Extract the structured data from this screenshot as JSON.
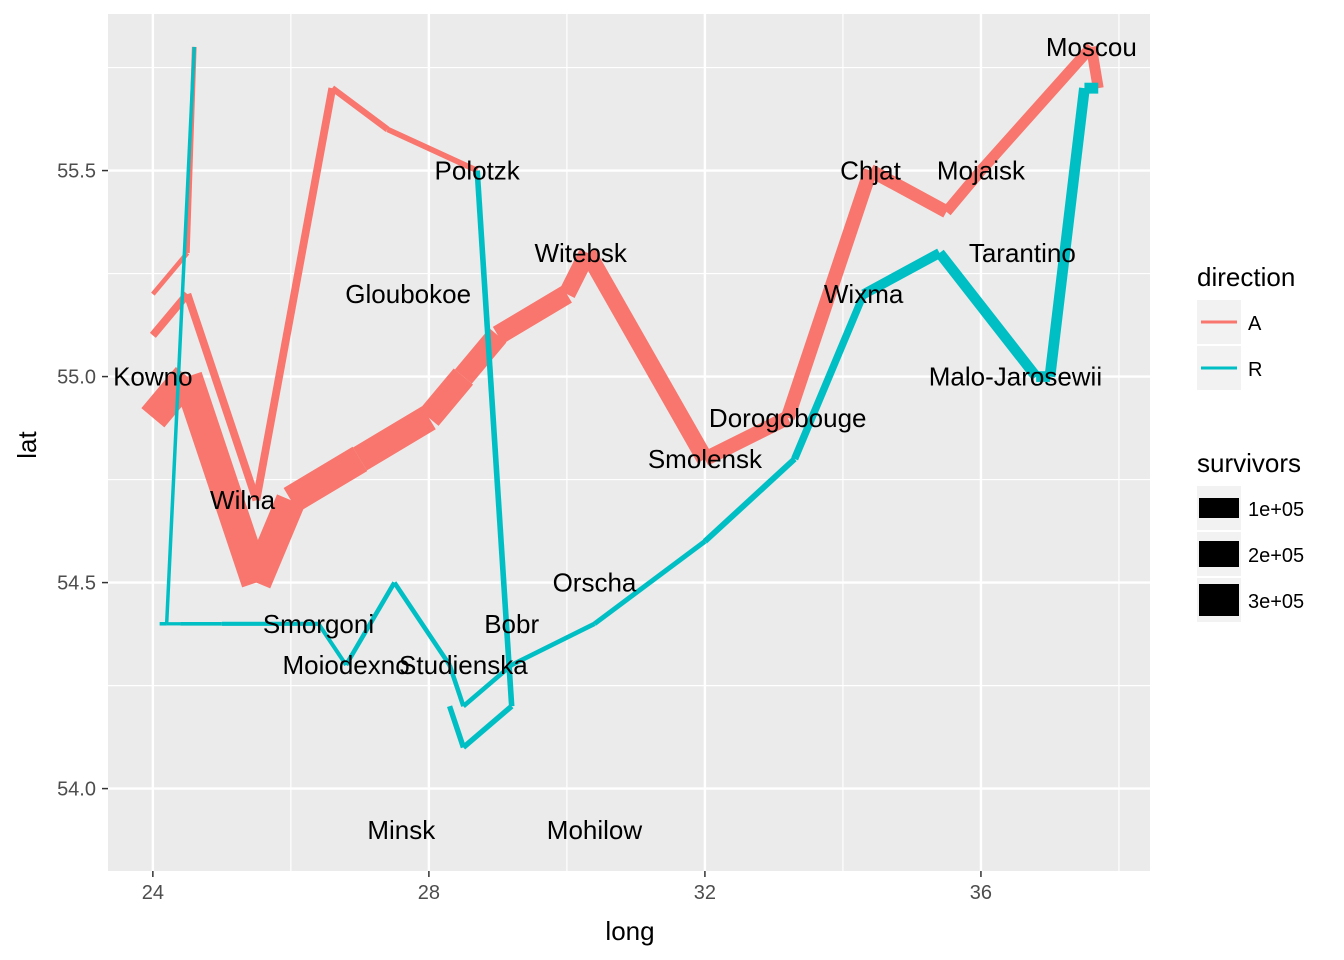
{
  "chart_data": {
    "type": "line",
    "title": "",
    "xlabel": "long",
    "ylabel": "lat",
    "xlim": [
      23.35,
      38.45
    ],
    "ylim": [
      53.8,
      55.88
    ],
    "x_ticks": [
      24,
      28,
      32,
      36
    ],
    "y_ticks": [
      54.0,
      54.5,
      55.0,
      55.5
    ],
    "grid": true,
    "colors": {
      "A": "#F8766D",
      "R": "#00BFC4",
      "panel": "#EBEBEB",
      "grid": "#FFFFFF"
    },
    "series": [
      {
        "name": "A",
        "group": 1,
        "points": [
          {
            "long": 24.0,
            "lat": 54.9,
            "survivors": 340000
          },
          {
            "long": 24.5,
            "lat": 55.0,
            "survivors": 340000
          },
          {
            "long": 25.5,
            "lat": 54.5,
            "survivors": 340000
          },
          {
            "long": 26.0,
            "lat": 54.7,
            "survivors": 320000
          },
          {
            "long": 27.0,
            "lat": 54.8,
            "survivors": 300000
          },
          {
            "long": 28.0,
            "lat": 54.9,
            "survivors": 280000
          },
          {
            "long": 28.5,
            "lat": 55.0,
            "survivors": 240000
          },
          {
            "long": 29.0,
            "lat": 55.1,
            "survivors": 210000
          },
          {
            "long": 30.0,
            "lat": 55.2,
            "survivors": 180000
          },
          {
            "long": 30.3,
            "lat": 55.3,
            "survivors": 175000
          },
          {
            "long": 32.0,
            "lat": 54.8,
            "survivors": 145000
          },
          {
            "long": 33.2,
            "lat": 54.9,
            "survivors": 140000
          },
          {
            "long": 34.4,
            "lat": 55.5,
            "survivors": 127100
          },
          {
            "long": 35.5,
            "lat": 55.4,
            "survivors": 100000
          },
          {
            "long": 36.0,
            "lat": 55.5,
            "survivors": 100000
          },
          {
            "long": 37.6,
            "lat": 55.8,
            "survivors": 100000
          },
          {
            "long": 37.7,
            "lat": 55.7,
            "survivors": 100000
          }
        ]
      },
      {
        "name": "R",
        "group": 1,
        "points": [
          {
            "long": 37.7,
            "lat": 55.7,
            "survivors": 100000
          },
          {
            "long": 37.5,
            "lat": 55.7,
            "survivors": 98000
          },
          {
            "long": 37.0,
            "lat": 55.0,
            "survivors": 97000
          },
          {
            "long": 36.8,
            "lat": 55.0,
            "survivors": 96000
          },
          {
            "long": 35.4,
            "lat": 55.3,
            "survivors": 87000
          },
          {
            "long": 34.3,
            "lat": 55.2,
            "survivors": 55000
          },
          {
            "long": 33.3,
            "lat": 54.8,
            "survivors": 37000
          },
          {
            "long": 32.0,
            "lat": 54.6,
            "survivors": 24000
          },
          {
            "long": 30.4,
            "lat": 54.4,
            "survivors": 20000
          },
          {
            "long": 29.2,
            "lat": 54.3,
            "survivors": 20000
          },
          {
            "long": 28.5,
            "lat": 54.2,
            "survivors": 20000
          },
          {
            "long": 28.3,
            "lat": 54.3,
            "survivors": 20000
          },
          {
            "long": 27.5,
            "lat": 54.5,
            "survivors": 20000
          },
          {
            "long": 26.8,
            "lat": 54.3,
            "survivors": 12000
          },
          {
            "long": 26.4,
            "lat": 54.4,
            "survivors": 14000
          },
          {
            "long": 25.0,
            "lat": 54.4,
            "survivors": 8000
          },
          {
            "long": 24.4,
            "lat": 54.4,
            "survivors": 4000
          },
          {
            "long": 24.2,
            "lat": 54.4,
            "survivors": 4000
          },
          {
            "long": 24.1,
            "lat": 54.4,
            "survivors": 4000
          }
        ]
      },
      {
        "name": "A",
        "group": 2,
        "points": [
          {
            "long": 24.0,
            "lat": 55.1,
            "survivors": 60000
          },
          {
            "long": 24.5,
            "lat": 55.2,
            "survivors": 60000
          },
          {
            "long": 25.5,
            "lat": 54.7,
            "survivors": 60000
          },
          {
            "long": 26.6,
            "lat": 55.7,
            "survivors": 40000
          },
          {
            "long": 27.4,
            "lat": 55.6,
            "survivors": 33000
          },
          {
            "long": 28.7,
            "lat": 55.5,
            "survivors": 33000
          }
        ]
      },
      {
        "name": "R",
        "group": 2,
        "points": [
          {
            "long": 28.7,
            "lat": 55.5,
            "survivors": 33000
          },
          {
            "long": 29.2,
            "lat": 54.2,
            "survivors": 30000
          },
          {
            "long": 28.5,
            "lat": 54.1,
            "survivors": 30000
          },
          {
            "long": 28.3,
            "lat": 54.2,
            "survivors": 28000
          }
        ]
      },
      {
        "name": "A",
        "group": 3,
        "points": [
          {
            "long": 24.0,
            "lat": 55.2,
            "survivors": 22000
          },
          {
            "long": 24.5,
            "lat": 55.3,
            "survivors": 22000
          },
          {
            "long": 24.6,
            "lat": 55.8,
            "survivors": 6000
          }
        ]
      },
      {
        "name": "R",
        "group": 3,
        "points": [
          {
            "long": 24.6,
            "lat": 55.8,
            "survivors": 6000
          },
          {
            "long": 24.2,
            "lat": 54.4,
            "survivors": 6000
          },
          {
            "long": 24.1,
            "lat": 54.4,
            "survivors": 6000
          }
        ]
      }
    ],
    "cities": [
      {
        "name": "Kowno",
        "long": 24.0,
        "lat": 55.0
      },
      {
        "name": "Wilna",
        "long": 25.3,
        "lat": 54.7
      },
      {
        "name": "Smorgoni",
        "long": 26.4,
        "lat": 54.4
      },
      {
        "name": "Moiodexno",
        "long": 26.8,
        "lat": 54.3
      },
      {
        "name": "Gloubokoe",
        "long": 27.7,
        "lat": 55.2
      },
      {
        "name": "Minsk",
        "long": 27.6,
        "lat": 53.9
      },
      {
        "name": "Studienska",
        "long": 28.5,
        "lat": 54.3
      },
      {
        "name": "Polotzk",
        "long": 28.7,
        "lat": 55.5
      },
      {
        "name": "Bobr",
        "long": 29.2,
        "lat": 54.4
      },
      {
        "name": "Witebsk",
        "long": 30.2,
        "lat": 55.3
      },
      {
        "name": "Orscha",
        "long": 30.4,
        "lat": 54.5
      },
      {
        "name": "Mohilow",
        "long": 30.4,
        "lat": 53.9
      },
      {
        "name": "Smolensk",
        "long": 32.0,
        "lat": 54.8
      },
      {
        "name": "Dorogobouge",
        "long": 33.2,
        "lat": 54.9
      },
      {
        "name": "Wixma",
        "long": 34.3,
        "lat": 55.2
      },
      {
        "name": "Chjat",
        "long": 34.4,
        "lat": 55.5
      },
      {
        "name": "Mojaisk",
        "long": 36.0,
        "lat": 55.5
      },
      {
        "name": "Moscou",
        "long": 37.6,
        "lat": 55.8
      },
      {
        "name": "Tarantino",
        "long": 36.6,
        "lat": 55.3
      },
      {
        "name": "Malo-Jarosewii",
        "long": 36.5,
        "lat": 55.0
      }
    ],
    "legend": {
      "position": "right",
      "direction_title": "direction",
      "direction_keys": [
        {
          "label": "A",
          "color": "#F8766D"
        },
        {
          "label": "R",
          "color": "#00BFC4"
        }
      ],
      "survivors_title": "survivors",
      "survivors_keys": [
        {
          "label": "1e+05",
          "value": 100000
        },
        {
          "label": "2e+05",
          "value": 200000
        },
        {
          "label": "3e+05",
          "value": 300000
        }
      ]
    }
  }
}
